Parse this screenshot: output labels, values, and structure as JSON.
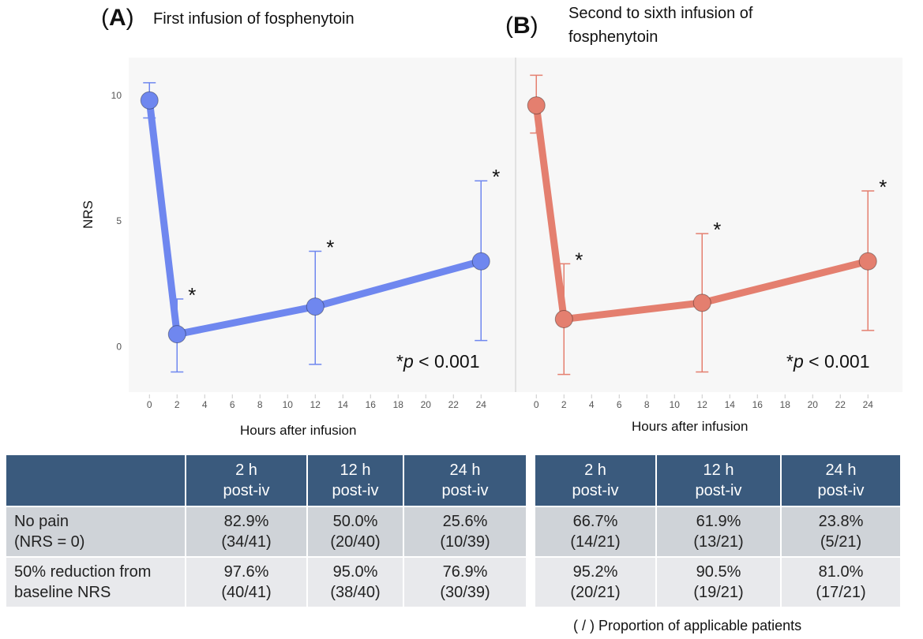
{
  "chart_data": [
    {
      "type": "line",
      "panel_label": "A",
      "title": "First infusion of fosphenytoin",
      "xlabel": "Hours after infusion",
      "ylabel": "NRS",
      "xlim": [
        -1.5,
        26.5
      ],
      "ylim": [
        -1.8,
        11.5
      ],
      "x_ticks": [
        0,
        2,
        4,
        6,
        8,
        10,
        12,
        14,
        16,
        18,
        20,
        22,
        24
      ],
      "y_ticks": [
        0,
        5,
        10
      ],
      "color": "#6f87ef",
      "points": [
        {
          "x": 0,
          "y": 9.8,
          "lower": 9.1,
          "upper": 10.5
        },
        {
          "x": 2,
          "y": 0.5,
          "lower": -1.0,
          "upper": 1.9,
          "sig": "*"
        },
        {
          "x": 12,
          "y": 1.6,
          "lower": -0.7,
          "upper": 3.8,
          "sig": "*"
        },
        {
          "x": 24,
          "y": 3.4,
          "lower": 0.25,
          "upper": 6.6,
          "sig": "*"
        }
      ],
      "annotation_star": "*",
      "annotation_p": "p",
      "annotation_rest": " < 0.001"
    },
    {
      "type": "line",
      "panel_label": "B",
      "title": "Second to sixth infusion of fosphenytoin",
      "xlabel": "Hours after infusion",
      "ylabel": "",
      "xlim": [
        -1.5,
        26.5
      ],
      "ylim": [
        -1.8,
        11.5
      ],
      "x_ticks": [
        0,
        2,
        4,
        6,
        8,
        10,
        12,
        14,
        16,
        18,
        20,
        22,
        24
      ],
      "y_ticks": [],
      "color": "#e47f6f",
      "points": [
        {
          "x": 0,
          "y": 9.6,
          "lower": 8.5,
          "upper": 10.8
        },
        {
          "x": 2,
          "y": 1.1,
          "lower": -1.1,
          "upper": 3.3,
          "sig": "*"
        },
        {
          "x": 12,
          "y": 1.75,
          "lower": -1.0,
          "upper": 4.5,
          "sig": "*"
        },
        {
          "x": 24,
          "y": 3.4,
          "lower": 0.65,
          "upper": 6.2,
          "sig": "*"
        }
      ],
      "annotation_star": "*",
      "annotation_p": "p",
      "annotation_rest": " < 0.001"
    }
  ],
  "tables": [
    {
      "headers": [
        [
          "",
          ""
        ],
        [
          "2 h",
          "post-iv"
        ],
        [
          "12 h",
          "post-iv"
        ],
        [
          "24 h",
          "post-iv"
        ]
      ],
      "rows": [
        {
          "label": [
            "No pain",
            "(NRS = 0)"
          ],
          "cells": [
            [
              "82.9%",
              "(34/41)"
            ],
            [
              "50.0%",
              "(20/40)"
            ],
            [
              "25.6%",
              "(10/39)"
            ]
          ]
        },
        {
          "label": [
            "50% reduction from",
            "baseline NRS"
          ],
          "cells": [
            [
              "97.6%",
              "(40/41)"
            ],
            [
              "95.0%",
              "(38/40)"
            ],
            [
              "76.9%",
              "(30/39)"
            ]
          ]
        }
      ]
    },
    {
      "headers": [
        [
          "2 h",
          "post-iv"
        ],
        [
          "12 h",
          "post-iv"
        ],
        [
          "24 h",
          "post-iv"
        ]
      ],
      "rows": [
        {
          "cells": [
            [
              "66.7%",
              "(14/21)"
            ],
            [
              "61.9%",
              "(13/21)"
            ],
            [
              "23.8%",
              "(5/21)"
            ]
          ]
        },
        {
          "cells": [
            [
              "95.2%",
              "(20/21)"
            ],
            [
              "90.5%",
              "(19/21)"
            ],
            [
              "81.0%",
              "(17/21)"
            ]
          ]
        }
      ]
    }
  ],
  "footnote": "( / ) Proportion of applicable patients",
  "colors": {
    "header_bg": "#3a5a7d",
    "row1_bg": "#cfd3d8",
    "row2_bg": "#e8e9ec",
    "plot_bg": "#f7f7f7"
  }
}
